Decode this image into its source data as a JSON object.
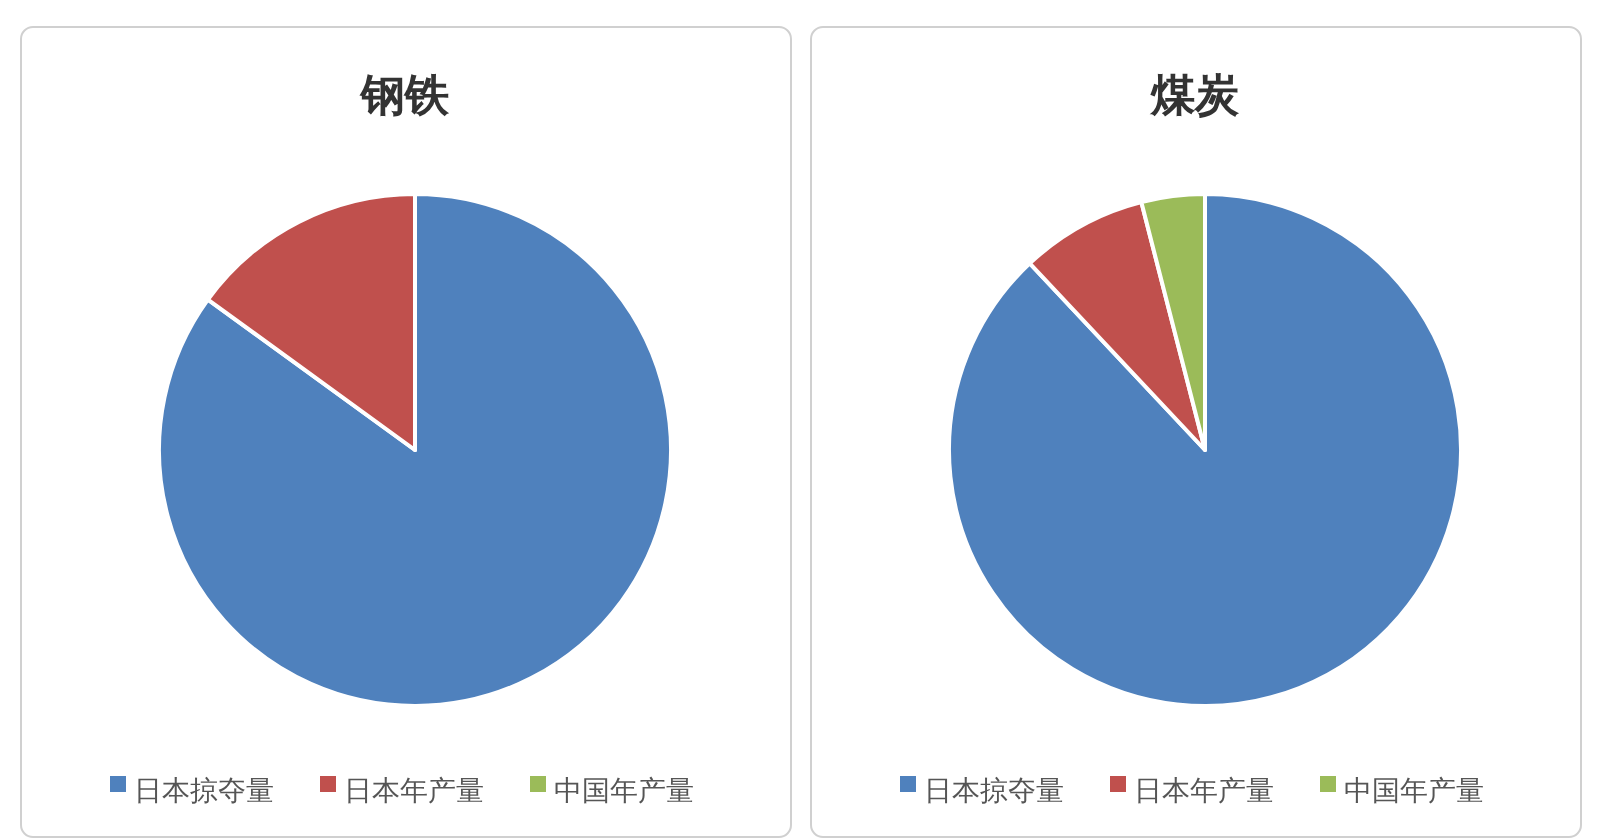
{
  "chart_data": [
    {
      "type": "pie",
      "title": "钢铁",
      "categories": [
        "日本掠夺量",
        "日本年产量",
        "中国年产量"
      ],
      "values": [
        85,
        15,
        0
      ],
      "colors": [
        "#4f81bd",
        "#c0504d",
        "#9bbb59"
      ],
      "legend": "bottom"
    },
    {
      "type": "pie",
      "title": "煤炭",
      "categories": [
        "日本掠夺量",
        "日本年产量",
        "中国年产量"
      ],
      "values": [
        88,
        8,
        4
      ],
      "colors": [
        "#4f81bd",
        "#c0504d",
        "#9bbb59"
      ],
      "legend": "bottom"
    }
  ]
}
